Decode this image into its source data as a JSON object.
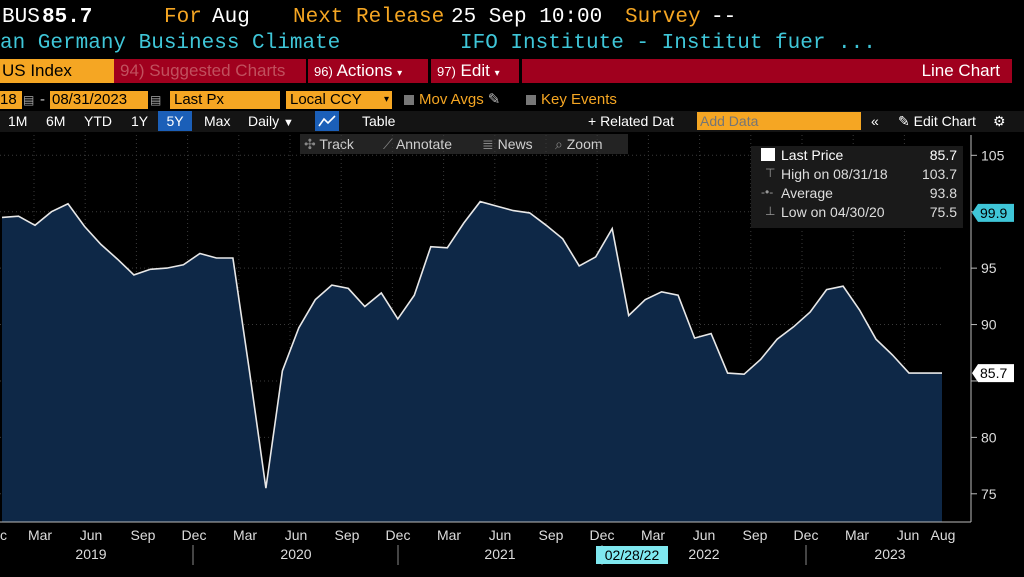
{
  "header": {
    "ticker": "BUS",
    "last": "85.7",
    "for_label": "For",
    "for_value": "Aug",
    "next_release_label": "Next Release",
    "next_release_value": "25 Sep 10:00",
    "survey_label": "Survey",
    "survey_value": "--",
    "security_name": "an Germany Business Climate",
    "source": "IFO Institute - Institut fuer ..."
  },
  "toolbar": {
    "index_label": "US Index",
    "suggested_charts": "94) Suggested Charts",
    "actions_num": "96)",
    "actions_label": "Actions",
    "edit_num": "97)",
    "edit_label": "Edit",
    "chart_type": "Line Chart"
  },
  "settings": {
    "start_date": "18",
    "end_date": "08/31/2023",
    "field": "Last Px",
    "currency": "Local CCY",
    "mov_avgs": "Mov Avgs",
    "key_events": "Key Events"
  },
  "ranges": {
    "items": [
      "1M",
      "6M",
      "YTD",
      "1Y",
      "5Y",
      "Max"
    ],
    "selected": "5Y",
    "frequency": "Daily",
    "table": "Table",
    "related_data": "+ Related Dat",
    "add_data_placeholder": "Add Data",
    "edit_chart": "Edit Chart"
  },
  "tools": {
    "track": "Track",
    "annotate": "Annotate",
    "news": "News",
    "zoom": "Zoom"
  },
  "legend": {
    "last_price_label": "Last Price",
    "last_price_value": "85.7",
    "high_label": "High on 08/31/18",
    "high_value": "103.7",
    "average_label": "Average",
    "average_value": "93.8",
    "low_label": "Low on 04/30/20",
    "low_value": "75.5"
  },
  "colors": {
    "amber": "#f5a623",
    "cyan": "#3fc6d8",
    "toolbar_red": "#a0001e",
    "area_fill": "#0e2847",
    "line": "#e8e8e8",
    "selected_blue": "#1b5fb8"
  },
  "chart_data": {
    "type": "area",
    "series": [
      {
        "name": "Last Price",
        "x": [
          "2018-11",
          "2018-12",
          "2019-01",
          "2019-02",
          "2019-03",
          "2019-04",
          "2019-05",
          "2019-06",
          "2019-07",
          "2019-08",
          "2019-09",
          "2019-10",
          "2019-11",
          "2019-12",
          "2020-01",
          "2020-02",
          "2020-03",
          "2020-04",
          "2020-05",
          "2020-06",
          "2020-07",
          "2020-08",
          "2020-09",
          "2020-10",
          "2020-11",
          "2020-12",
          "2021-01",
          "2021-02",
          "2021-03",
          "2021-04",
          "2021-05",
          "2021-06",
          "2021-07",
          "2021-08",
          "2021-09",
          "2021-10",
          "2021-11",
          "2021-12",
          "2022-01",
          "2022-02",
          "2022-03",
          "2022-04",
          "2022-05",
          "2022-06",
          "2022-07",
          "2022-08",
          "2022-09",
          "2022-10",
          "2022-11",
          "2022-12",
          "2023-01",
          "2023-02",
          "2023-03",
          "2023-04",
          "2023-05",
          "2023-06",
          "2023-07",
          "2023-08"
        ],
        "values": [
          99.5,
          99.6,
          98.8,
          100.0,
          100.7,
          98.7,
          97.1,
          95.8,
          94.4,
          94.9,
          95.0,
          95.3,
          96.3,
          95.9,
          95.9,
          85.9,
          75.5,
          85.9,
          89.7,
          92.2,
          93.5,
          93.2,
          91.6,
          92.8,
          90.5,
          92.6,
          96.9,
          96.8,
          99.0,
          100.9,
          100.5,
          100.1,
          99.9,
          98.8,
          97.6,
          95.2,
          96.0,
          98.5,
          90.8,
          92.2,
          92.9,
          92.6,
          88.8,
          89.2,
          85.7,
          85.6,
          86.9,
          88.7,
          89.8,
          91.1,
          93.1,
          93.4,
          91.3,
          88.7,
          87.3,
          85.7,
          85.7,
          85.7
        ],
        "last": 85.7
      }
    ],
    "y_ticks": [
      75,
      80,
      85,
      90,
      95,
      100,
      105
    ],
    "y_tick_labels": [
      "75",
      "80",
      "",
      "90",
      "95",
      "",
      "105"
    ],
    "ylim": [
      72.5,
      106.8
    ],
    "x_tick_labels": [
      "c",
      "Mar",
      "Jun",
      "Sep",
      "Dec",
      "Mar",
      "Jun",
      "Sep",
      "Dec",
      "Mar",
      "Jun",
      "Sep",
      "Dec",
      "Mar",
      "Jun",
      "Sep",
      "Dec",
      "Mar",
      "Jun",
      "Aug"
    ],
    "year_labels": [
      "2019",
      "2020",
      "2021",
      "2022",
      "2023"
    ],
    "right_flags": [
      {
        "label": "99.9",
        "value": 99.9,
        "color": "cyan"
      },
      {
        "label": "85.7",
        "value": 85.7,
        "color": "white"
      }
    ],
    "crosshair_label": "02/28/22",
    "grid": true,
    "legend_position": "top-right"
  }
}
